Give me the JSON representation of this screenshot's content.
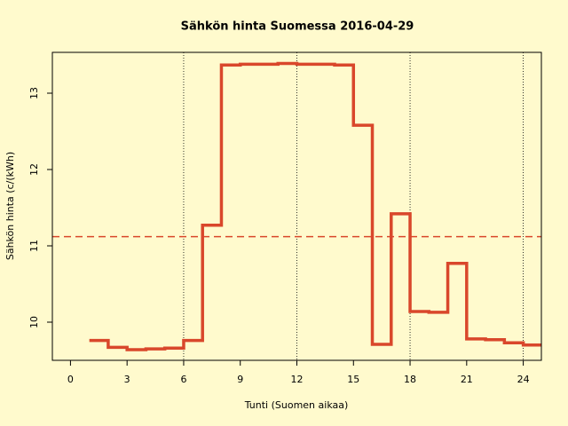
{
  "chart_data": {
    "type": "step",
    "title": "Sähkön hinta Suomessa 2016-04-29",
    "x_label": "Tunti (Suomen aikaa)",
    "y_label": "Sähkön hinta (c/(kWh)",
    "x": [
      1,
      2,
      3,
      4,
      5,
      6,
      7,
      8,
      9,
      10,
      11,
      12,
      13,
      14,
      15,
      16,
      17,
      18,
      19,
      20,
      21,
      22,
      23,
      24,
      25
    ],
    "series": [
      {
        "color": "#d9472b",
        "values": [
          9.76,
          9.67,
          9.64,
          9.65,
          9.66,
          9.76,
          11.27,
          13.37,
          13.38,
          13.38,
          13.39,
          13.38,
          13.38,
          13.37,
          12.58,
          9.71,
          11.42,
          10.14,
          10.13,
          10.77,
          9.78,
          9.77,
          9.73,
          9.7,
          9.7
        ]
      }
    ],
    "mean_line": {
      "value": 11.12,
      "color": "#d9472b"
    },
    "vlines": [
      6,
      12,
      18,
      24
    ],
    "xlim": [
      -0.96,
      24.96
    ],
    "ylim": [
      9.5,
      13.535
    ],
    "xticks": [
      0,
      3,
      6,
      9,
      12,
      15,
      18,
      21,
      24
    ],
    "yticks": [
      10,
      11,
      12,
      13
    ]
  }
}
